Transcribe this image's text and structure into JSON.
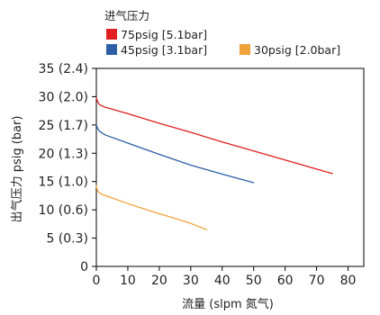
{
  "chart_data": {
    "type": "line",
    "title": "",
    "legend": {
      "title": "进气压力",
      "placement": "top-left"
    },
    "xlabel": "流量 (slpm 氮气)",
    "ylabel": "出气压力 psig (bar)",
    "xlim": [
      0,
      85
    ],
    "ylim": [
      0,
      35
    ],
    "x_ticks": [
      0,
      10,
      20,
      30,
      40,
      50,
      60,
      70,
      80
    ],
    "x_tick_labels": [
      "0",
      "10",
      "20",
      "30",
      "40",
      "50",
      "60",
      "70",
      "80"
    ],
    "y_ticks": [
      0,
      5,
      10,
      15,
      20,
      25,
      30,
      35
    ],
    "y_tick_labels": [
      "0",
      "5 (0.3)",
      "10 (0.6)",
      "15 (1.0)",
      "20 (1.3)",
      "25 (1.7)",
      "30 (2.0)",
      "35 (2.4)"
    ],
    "grid": false,
    "series": [
      {
        "name": "75psig [5.1bar]",
        "color": "#e02020",
        "x": [
          0,
          0.5,
          1,
          2,
          3,
          5,
          10,
          20,
          30,
          40,
          50,
          60,
          70,
          75
        ],
        "y": [
          29.8,
          29.0,
          28.6,
          28.3,
          28.1,
          27.8,
          27.0,
          25.3,
          23.7,
          22.0,
          20.4,
          18.8,
          17.2,
          16.4
        ]
      },
      {
        "name": "45psig [3.1bar]",
        "color": "#2e5fa6",
        "x": [
          0,
          0.5,
          1,
          2,
          3,
          5,
          10,
          20,
          30,
          40,
          50
        ],
        "y": [
          25.0,
          24.3,
          23.9,
          23.5,
          23.2,
          22.8,
          21.8,
          19.8,
          17.9,
          16.3,
          14.8
        ]
      },
      {
        "name": "30psig [2.0bar]",
        "color": "#f0a23a",
        "x": [
          0,
          0.3,
          0.6,
          1,
          2,
          5,
          10,
          15,
          20,
          25,
          30,
          35
        ],
        "y": [
          14.3,
          13.5,
          13.2,
          13.0,
          12.7,
          12.1,
          11.1,
          10.2,
          9.3,
          8.5,
          7.6,
          6.5
        ]
      }
    ]
  }
}
